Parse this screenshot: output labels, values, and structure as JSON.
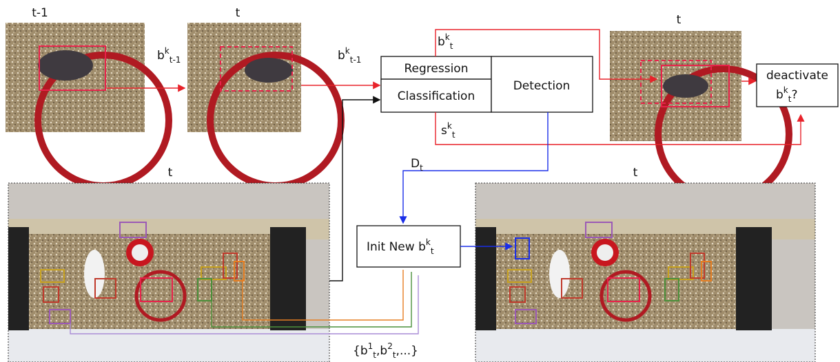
{
  "frames": {
    "top_prev": "t-1",
    "top_curr": "t",
    "top_result": "t",
    "bottom_left": "t",
    "bottom_right": "t"
  },
  "labels": {
    "b_prev_a": {
      "base": "b",
      "sup": "k",
      "sub": "t-1"
    },
    "b_prev_b": {
      "base": "b",
      "sup": "k",
      "sub": "t-1"
    },
    "b_curr": {
      "base": "b",
      "sup": "k",
      "sub": "t"
    },
    "s_curr": {
      "base": "s",
      "sup": "k",
      "sub": "t"
    },
    "detections": {
      "base": "D",
      "sub": "t"
    }
  },
  "nodes": {
    "regression": "Regression",
    "classification": "Classification",
    "detection": "Detection",
    "init": {
      "text": "Init New",
      "base": "b",
      "sup": "k",
      "sub": "t"
    },
    "deactivate": {
      "line1": "deactivate",
      "base": "b",
      "sup": "k",
      "sub": "t",
      "suffix": "?"
    }
  },
  "track_set": [
    {
      "text": "{"
    },
    {
      "base": "b",
      "sup": "1",
      "sub": "t"
    },
    {
      "text": ","
    },
    {
      "base": "b",
      "sup": "2",
      "sub": "t"
    },
    {
      "text": ",...}"
    }
  ]
}
